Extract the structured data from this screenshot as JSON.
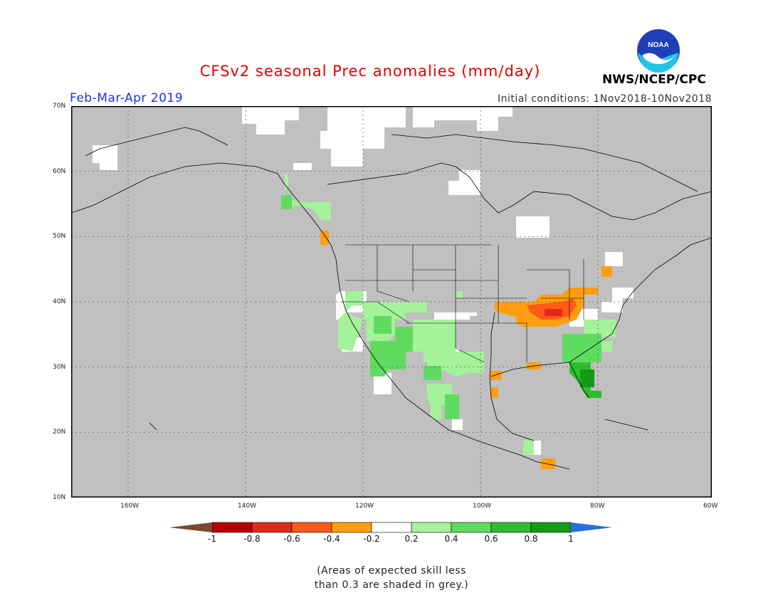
{
  "header": {
    "title": "CFSv2 seasonal Prec anomalies (mm/day)",
    "period": "Feb-Mar-Apr 2019",
    "initial_conditions": "Initial conditions: 1Nov2018-10Nov2018",
    "agency": "NWS/NCEP/CPC",
    "logo_text": "NOAA"
  },
  "map": {
    "lat_labels": [
      "70N",
      "60N",
      "50N",
      "40N",
      "30N",
      "20N",
      "10N"
    ],
    "lon_labels": [
      "160W",
      "140W",
      "120W",
      "100W",
      "80W",
      "60W"
    ],
    "background_color": "#c0c0c0"
  },
  "colorbar": {
    "labels": [
      "-1",
      "-0.8",
      "-0.6",
      "-0.4",
      "-0.2",
      "0.2",
      "0.4",
      "0.6",
      "0.8",
      "1"
    ],
    "low_arrow_color": "#7a4a2e",
    "high_arrow_color": "#2a6fd6",
    "colors": [
      "#b30000",
      "#e02a18",
      "#ff5a1a",
      "#ff9e10",
      "#ffffff",
      "#a4f29a",
      "#5fdc5f",
      "#2ebd2e",
      "#159a15"
    ]
  },
  "footnote": {
    "line1": "(Areas of expected skill less",
    "line2": "than 0.3 are shaded in grey.)"
  }
}
